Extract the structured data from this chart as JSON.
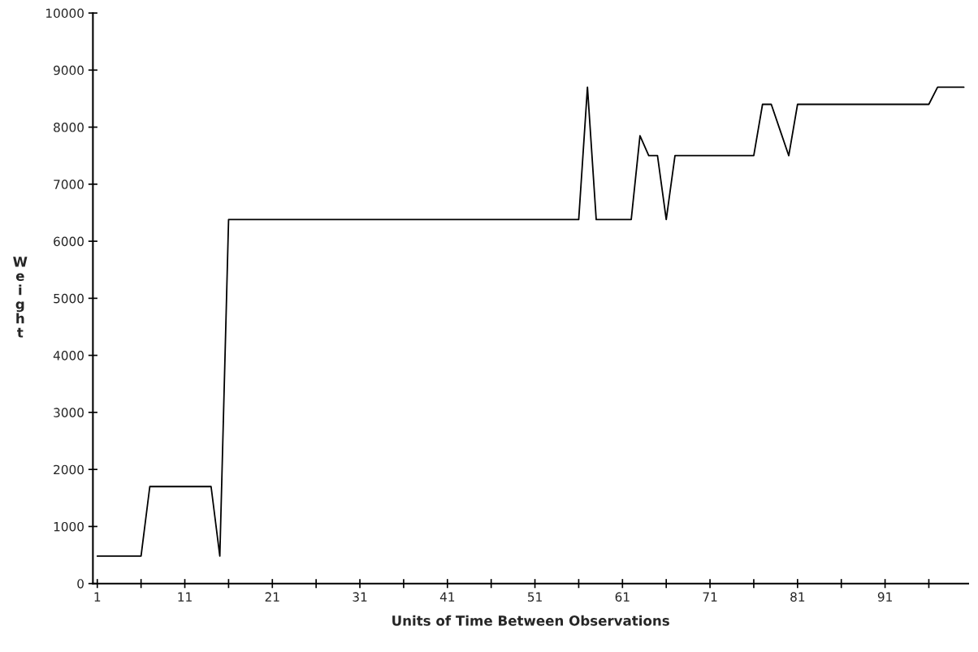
{
  "chart_data": {
    "type": "line",
    "xlabel": "Units of Time Between Observations",
    "ylabel": "Weight",
    "x": [
      1,
      6,
      7,
      14,
      15,
      16,
      56,
      57,
      58,
      62,
      63,
      64,
      65,
      66,
      67,
      76,
      77,
      78,
      79,
      80,
      81,
      96,
      97,
      100
    ],
    "series": [
      {
        "color": "#000000",
        "values": [
          480,
          480,
          1700,
          1700,
          480,
          6380,
          6380,
          8700,
          6380,
          6380,
          7850,
          7500,
          7500,
          6380,
          7500,
          7500,
          8400,
          8400,
          7950,
          7500,
          8400,
          8400,
          8700,
          8700
        ]
      }
    ],
    "xlim": [
      0.5,
      100.5
    ],
    "ylim": [
      0,
      10000
    ],
    "xticks": [
      1,
      {
        "value": 6,
        "label": null
      },
      11,
      {
        "value": 16,
        "label": null
      },
      21,
      {
        "value": 26,
        "label": null
      },
      31,
      {
        "value": 36,
        "label": null
      },
      41,
      {
        "value": 46,
        "label": null
      },
      51,
      {
        "value": 56,
        "label": null
      },
      61,
      {
        "value": 66,
        "label": null
      },
      71,
      {
        "value": 76,
        "label": null
      },
      81,
      {
        "value": 86,
        "label": null
      },
      91,
      {
        "value": 96,
        "label": null
      }
    ],
    "yticks": [
      0,
      1000,
      2000,
      3000,
      4000,
      5000,
      6000,
      7000,
      8000,
      9000,
      10000
    ],
    "grid": false,
    "legend": false,
    "marker": "none",
    "line_style": "solid"
  }
}
